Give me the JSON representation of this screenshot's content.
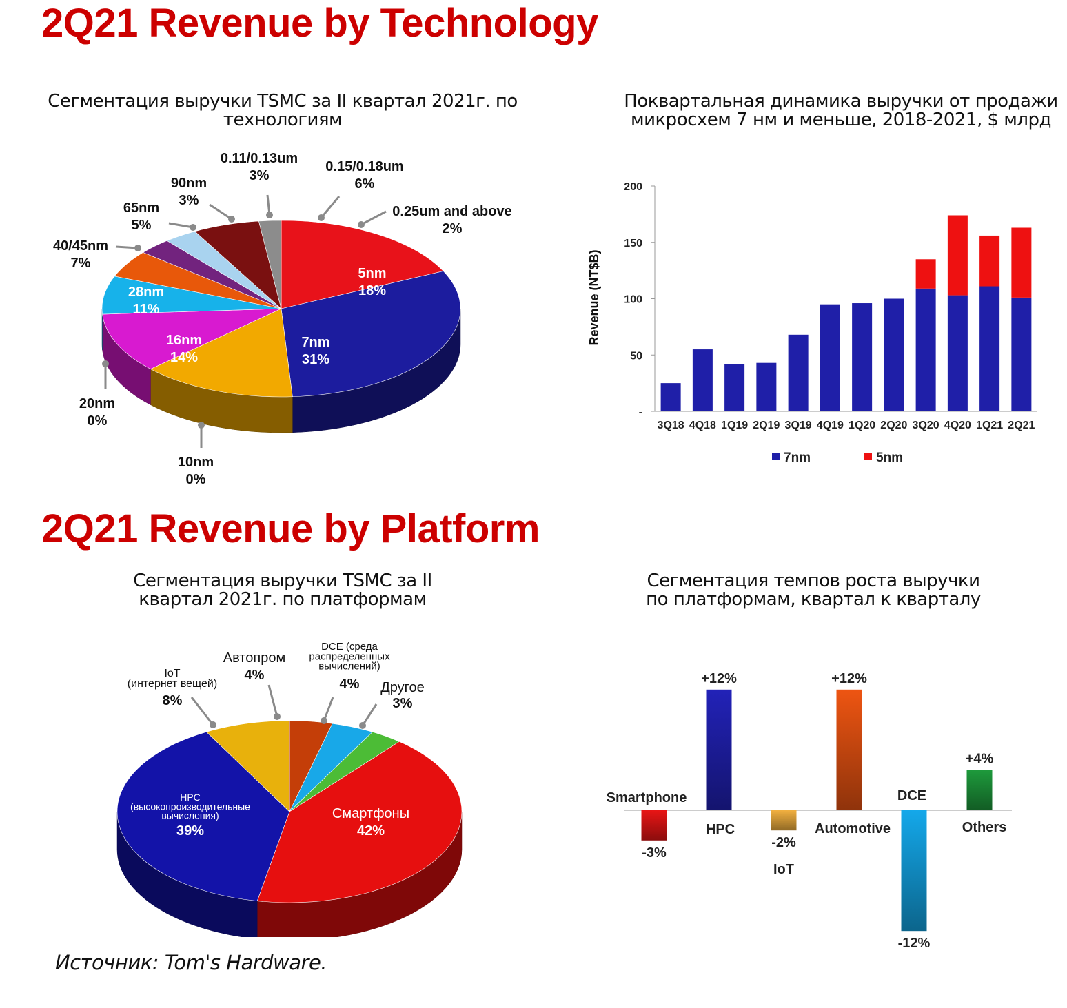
{
  "headings": {
    "technology": "2Q21 Revenue by Technology",
    "platform": "2Q21 Revenue by Platform"
  },
  "source": "Источник: Tom's Hardware.",
  "colors": {
    "heading": "#cc0000",
    "series_7nm": "#1f1fa8",
    "series_5nm": "#ee1111"
  },
  "chart_data": [
    {
      "id": "tech-pie",
      "type": "pie",
      "title": "Сегментация выручки TSMC за II квартал 2021г. по технологиям",
      "slices": [
        {
          "name": "5nm",
          "value": 18,
          "label": "18%",
          "color": "#e8121a"
        },
        {
          "name": "7nm",
          "value": 31,
          "label": "31%",
          "color": "#1c1c9e"
        },
        {
          "name": "10nm",
          "value": 0,
          "label": "0%",
          "color": "#666666"
        },
        {
          "name": "20nm",
          "value": 0,
          "label": "0%",
          "color": "#999999"
        },
        {
          "name": "16nm",
          "value": 14,
          "label": "14%",
          "color": "#f2a900"
        },
        {
          "name": "28nm",
          "value": 11,
          "label": "11%",
          "color": "#d81ad0"
        },
        {
          "name": "40/45nm",
          "value": 7,
          "label": "7%",
          "color": "#17b2ea"
        },
        {
          "name": "65nm",
          "value": 5,
          "label": "5%",
          "color": "#e8580a"
        },
        {
          "name": "90nm",
          "value": 3,
          "label": "3%",
          "color": "#72237e"
        },
        {
          "name": "0.11/0.13um",
          "value": 3,
          "label": "3%",
          "color": "#a9d3ef"
        },
        {
          "name": "0.15/0.18um",
          "value": 6,
          "label": "6%",
          "color": "#7a1010"
        },
        {
          "name": "0.25um and above",
          "value": 2,
          "label": "2%",
          "color": "#8c8c8c"
        }
      ]
    },
    {
      "id": "nodes-bar",
      "type": "bar",
      "stacked": true,
      "title": "Поквартальная динамика выручки от продажи микросхем 7 нм и меньше, 2018-2021, $ млрд",
      "ylabel": "Revenue (NT$B)",
      "ylim": [
        0,
        200
      ],
      "yticks": [
        "-",
        "50",
        "100",
        "150",
        "200"
      ],
      "categories": [
        "3Q18",
        "4Q18",
        "1Q19",
        "2Q19",
        "3Q19",
        "4Q19",
        "1Q20",
        "2Q20",
        "3Q20",
        "4Q20",
        "1Q21",
        "2Q21"
      ],
      "series": [
        {
          "name": "7nm",
          "values": [
            25,
            55,
            42,
            43,
            68,
            95,
            96,
            100,
            109,
            103,
            111,
            101
          ]
        },
        {
          "name": "5nm",
          "values": [
            0,
            0,
            0,
            0,
            0,
            0,
            0,
            0,
            26,
            71,
            45,
            62
          ]
        }
      ],
      "legend": "bottom"
    },
    {
      "id": "platform-pie",
      "type": "pie",
      "title": "Сегментация выручки TSMC за II квартал 2021г. по платформам",
      "slices": [
        {
          "name": "Смартфоны",
          "value": 42,
          "label": "42%",
          "color": "#e60f0f"
        },
        {
          "name": "HPC",
          "name2": "(высокопроизводительные",
          "name3": "вычисления)",
          "value": 39,
          "label": "39%",
          "color": "#1313a8"
        },
        {
          "name": "IoT",
          "name2": "(интернет вещей)",
          "value": 8,
          "label": "8%",
          "color": "#e8b10c"
        },
        {
          "name": "Автопром",
          "value": 4,
          "label": "4%",
          "color": "#c43e08"
        },
        {
          "name": "DCE (среда",
          "name2": "распределенных",
          "name3": "вычислений)",
          "value": 4,
          "label": "4%",
          "color": "#18a8e8"
        },
        {
          "name": "Другое",
          "value": 3,
          "label": "3%",
          "color": "#4cbc36"
        }
      ]
    },
    {
      "id": "growth-bar",
      "type": "bar",
      "title": "Сегментация темпов роста выручки по платформам, квартал к кварталу",
      "categories": [
        "Smartphone",
        "HPC",
        "IoT",
        "Automotive",
        "DCE",
        "Others"
      ],
      "values": [
        -3,
        12,
        -2,
        12,
        -12,
        4
      ],
      "labels": [
        "-3%",
        "+12%",
        "-2%",
        "+12%",
        "-12%",
        "+4%"
      ],
      "colors": [
        "#e81515",
        "#2222b8",
        "#f2b040",
        "#ee5512",
        "#14a8ea",
        "#1e9a3c"
      ]
    }
  ]
}
